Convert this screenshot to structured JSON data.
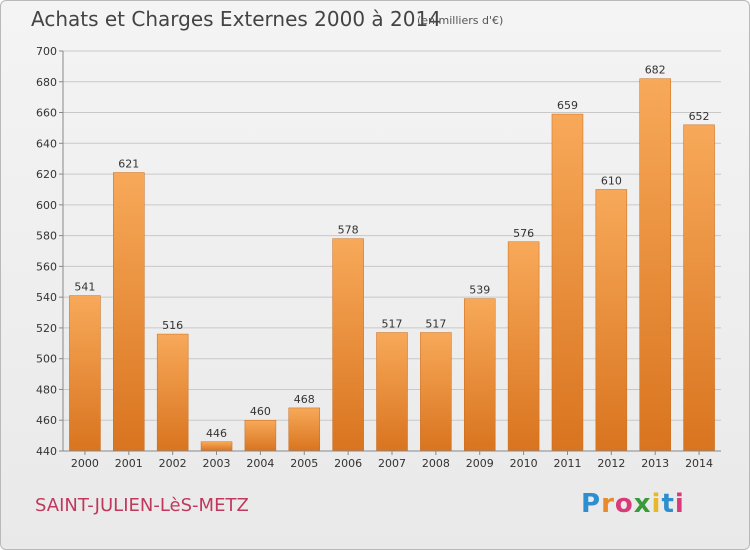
{
  "header": {
    "title": "Achats et Charges Externes 2000 à 2014",
    "unit": "(en milliers d'€)"
  },
  "footer": {
    "commune": "SAINT-JULIEN-LèS-METZ",
    "logo_letters": [
      "P",
      "r",
      "o",
      "x",
      "i",
      "t",
      "i"
    ],
    "logo_colors": [
      "#2e8fd0",
      "#e8892b",
      "#d93a7a",
      "#3a9a3a",
      "#e8b82b",
      "#2e8fd0",
      "#d93a7a"
    ]
  },
  "colors": {
    "bar_top": "#f7a959",
    "bar_bottom": "#d9741f",
    "grid": "#c8c8c8",
    "axis_text": "#333333"
  },
  "chart_data": {
    "type": "bar",
    "title": "Achats et Charges Externes 2000 à 2014",
    "subtitle": "(en milliers d'€)",
    "categories": [
      "2000",
      "2001",
      "2002",
      "2003",
      "2004",
      "2005",
      "2006",
      "2007",
      "2008",
      "2009",
      "2010",
      "2011",
      "2012",
      "2013",
      "2014"
    ],
    "values": [
      541,
      621,
      516,
      446,
      460,
      468,
      578,
      517,
      517,
      539,
      576,
      659,
      610,
      682,
      652
    ],
    "ylim": [
      440,
      700
    ],
    "yticks": [
      440,
      460,
      480,
      500,
      520,
      540,
      560,
      580,
      600,
      620,
      640,
      660,
      680,
      700
    ],
    "grid": true
  }
}
